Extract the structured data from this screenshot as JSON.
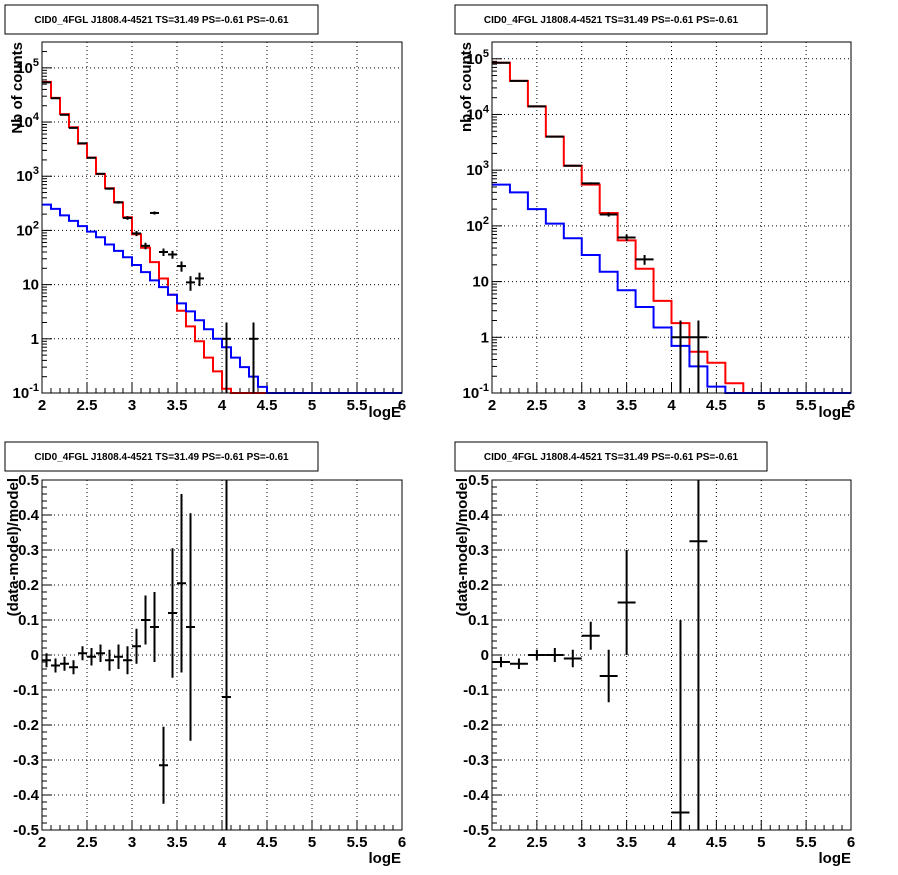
{
  "chart_data": [
    {
      "type": "line",
      "title": "CID0_4FGL J1808.4-4521 TS=31.49 PS=-0.61 PS=-0.61",
      "xlabel": "logE",
      "ylabel": "Nb of counts",
      "xlim": [
        2,
        6
      ],
      "ylim": [
        0.1,
        300000
      ],
      "yscale": "log",
      "grid": true,
      "x_tick_labels": [
        "2",
        "2.5",
        "3",
        "3.5",
        "4",
        "4.5",
        "5",
        "5.5",
        "6"
      ],
      "y_tick_labels": [
        "10^-1",
        "1",
        "10",
        "10^2",
        "10^3",
        "10^4",
        "10^5"
      ],
      "series": [
        {
          "color": "#ff0000",
          "style": "step",
          "bin_edges": [
            2.0,
            2.1,
            2.2,
            2.3,
            2.4,
            2.5,
            2.6,
            2.7,
            2.8,
            2.9,
            3.0,
            3.1,
            3.2,
            3.3,
            3.4,
            3.5,
            3.6,
            3.7,
            3.8,
            3.9,
            4.0,
            4.1,
            4.2,
            4.3,
            4.4,
            4.5,
            4.6,
            4.7,
            4.8,
            4.9,
            5.0,
            5.1,
            5.2,
            5.3,
            5.4,
            5.5,
            5.6,
            5.7,
            5.8,
            5.9,
            6.0
          ],
          "values": [
            55000,
            28000,
            14000,
            8000,
            4000,
            2200,
            1100,
            600,
            330,
            175,
            85,
            48,
            26,
            13,
            6.5,
            3.3,
            1.7,
            0.9,
            0.45,
            0.25,
            0.12,
            0.1,
            0.1,
            0.1,
            0.1,
            0.1,
            0.1,
            0.1,
            0.1,
            0.1,
            0.1,
            0.1,
            0.1,
            0.1,
            0.1,
            0.1,
            0.1,
            0.1,
            0.1,
            0.1
          ]
        },
        {
          "color": "#0000ff",
          "style": "step",
          "bin_edges": [
            2.0,
            2.1,
            2.2,
            2.3,
            2.4,
            2.5,
            2.6,
            2.7,
            2.8,
            2.9,
            3.0,
            3.1,
            3.2,
            3.3,
            3.4,
            3.5,
            3.6,
            3.7,
            3.8,
            3.9,
            4.0,
            4.1,
            4.2,
            4.3,
            4.4,
            4.5,
            4.6,
            4.7,
            4.8,
            4.9,
            5.0,
            5.1,
            5.2,
            5.3,
            5.4,
            5.5,
            5.6,
            5.7,
            5.8,
            5.9,
            6.0
          ],
          "values": [
            300,
            250,
            190,
            150,
            120,
            95,
            75,
            55,
            42,
            32,
            23,
            17,
            12,
            9,
            6.5,
            4.5,
            3.2,
            2.2,
            1.5,
            1.0,
            0.7,
            0.45,
            0.3,
            0.2,
            0.13,
            0.1,
            0.1,
            0.1,
            0.1,
            0.1,
            0.1,
            0.1,
            0.1,
            0.1,
            0.1,
            0.1,
            0.1,
            0.1,
            0.1,
            0.1
          ]
        },
        {
          "color": "#000000",
          "style": "errorbar",
          "points": [
            {
              "x": 2.05,
              "y": 54000,
              "xerr": 0.05,
              "yerr": [
                240,
                240
              ]
            },
            {
              "x": 2.15,
              "y": 27500,
              "xerr": 0.05,
              "yerr": [
                170,
                170
              ]
            },
            {
              "x": 2.25,
              "y": 13600,
              "xerr": 0.05,
              "yerr": [
                120,
                120
              ]
            },
            {
              "x": 2.35,
              "y": 7800,
              "xerr": 0.05,
              "yerr": [
                90,
                90
              ]
            },
            {
              "x": 2.45,
              "y": 4050,
              "xerr": 0.05,
              "yerr": [
                64,
                64
              ]
            },
            {
              "x": 2.55,
              "y": 2190,
              "xerr": 0.05,
              "yerr": [
                47,
                47
              ]
            },
            {
              "x": 2.65,
              "y": 1110,
              "xerr": 0.05,
              "yerr": [
                33,
                33
              ]
            },
            {
              "x": 2.75,
              "y": 590,
              "xerr": 0.05,
              "yerr": [
                24,
                24
              ]
            },
            {
              "x": 2.85,
              "y": 330,
              "xerr": 0.05,
              "yerr": [
                18,
                18
              ]
            },
            {
              "x": 2.95,
              "y": 170,
              "xerr": 0.05,
              "yerr": [
                13,
                13
              ]
            },
            {
              "x": 3.05,
              "y": 88,
              "xerr": 0.05,
              "yerr": [
                9.4,
                9.4
              ]
            },
            {
              "x": 3.15,
              "y": 52,
              "xerr": 0.05,
              "yerr": [
                7.2,
                7.2
              ]
            },
            {
              "x": 3.25,
              "y": 210,
              "xerr": 0.05,
              "yerr": [
                14,
                14
              ]
            },
            {
              "x": 3.35,
              "y": 40,
              "xerr": 0.05,
              "yerr": [
                6.3,
                6.3
              ]
            },
            {
              "x": 3.45,
              "y": 36,
              "xerr": 0.05,
              "yerr": [
                6,
                6
              ]
            },
            {
              "x": 3.55,
              "y": 22,
              "xerr": 0.05,
              "yerr": [
                4.7,
                4.7
              ]
            },
            {
              "x": 3.65,
              "y": 11,
              "xerr": 0.05,
              "yerr": [
                3.3,
                3.3
              ]
            },
            {
              "x": 3.75,
              "y": 13,
              "xerr": 0.05,
              "yerr": [
                3.6,
                3.6
              ]
            },
            {
              "x": 4.05,
              "y": 1,
              "xerr": 0.05,
              "yerr": [
                0.9,
                1
              ]
            },
            {
              "x": 4.35,
              "y": 1,
              "xerr": 0.05,
              "yerr": [
                0.9,
                1
              ]
            }
          ]
        }
      ]
    },
    {
      "type": "line",
      "title": "CID0_4FGL J1808.4-4521 TS=31.49 PS=-0.61 PS=-0.61",
      "xlabel": "logE",
      "ylabel": "nb of counts",
      "xlim": [
        2,
        6
      ],
      "ylim": [
        0.1,
        200000
      ],
      "yscale": "log",
      "grid": true,
      "x_tick_labels": [
        "2",
        "2.5",
        "3",
        "3.5",
        "4",
        "4.5",
        "5",
        "5.5",
        "6"
      ],
      "y_tick_labels": [
        "10^-1",
        "1",
        "10",
        "10^2",
        "10^3",
        "10^4",
        "10^5"
      ],
      "series": [
        {
          "color": "#ff0000",
          "style": "step",
          "bin_edges": [
            2.0,
            2.2,
            2.4,
            2.6,
            2.8,
            3.0,
            3.2,
            3.4,
            3.6,
            3.8,
            4.0,
            4.2,
            4.4,
            4.6,
            4.8,
            5.0,
            5.2,
            5.4,
            5.6,
            5.8,
            6.0
          ],
          "values": [
            85000,
            40000,
            14000,
            4000,
            1200,
            550,
            170,
            55,
            17,
            4.5,
            1.8,
            0.55,
            0.35,
            0.15,
            0.1,
            0.1,
            0.1,
            0.1,
            0.1,
            0.1
          ]
        },
        {
          "color": "#0000ff",
          "style": "step",
          "bin_edges": [
            2.0,
            2.2,
            2.4,
            2.6,
            2.8,
            3.0,
            3.2,
            3.4,
            3.6,
            3.8,
            4.0,
            4.2,
            4.4,
            4.6,
            4.8,
            5.0,
            5.2,
            5.4,
            5.6,
            5.8,
            6.0
          ],
          "values": [
            550,
            400,
            200,
            110,
            60,
            30,
            15,
            7,
            3.5,
            1.5,
            0.7,
            0.3,
            0.13,
            0.1,
            0.1,
            0.1,
            0.1,
            0.1,
            0.1,
            0.1
          ]
        },
        {
          "color": "#000000",
          "style": "errorbar",
          "points": [
            {
              "x": 2.1,
              "y": 85000,
              "xerr": 0.1,
              "yerr": [
                290,
                290
              ]
            },
            {
              "x": 2.3,
              "y": 40000,
              "xerr": 0.1,
              "yerr": [
                200,
                200
              ]
            },
            {
              "x": 2.5,
              "y": 14000,
              "xerr": 0.1,
              "yerr": [
                118,
                118
              ]
            },
            {
              "x": 2.7,
              "y": 4000,
              "xerr": 0.1,
              "yerr": [
                63,
                63
              ]
            },
            {
              "x": 2.9,
              "y": 1200,
              "xerr": 0.1,
              "yerr": [
                35,
                35
              ]
            },
            {
              "x": 3.1,
              "y": 580,
              "xerr": 0.1,
              "yerr": [
                24,
                24
              ]
            },
            {
              "x": 3.3,
              "y": 160,
              "xerr": 0.1,
              "yerr": [
                13,
                13
              ]
            },
            {
              "x": 3.5,
              "y": 62,
              "xerr": 0.1,
              "yerr": [
                8,
                8
              ]
            },
            {
              "x": 3.7,
              "y": 25,
              "xerr": 0.1,
              "yerr": [
                5,
                5
              ]
            },
            {
              "x": 4.1,
              "y": 1,
              "xerr": 0.1,
              "yerr": [
                0.9,
                1
              ]
            },
            {
              "x": 4.3,
              "y": 1,
              "xerr": 0.1,
              "yerr": [
                0.9,
                1
              ]
            }
          ]
        }
      ]
    },
    {
      "type": "scatter",
      "title": "CID0_4FGL J1808.4-4521 TS=31.49 PS=-0.61 PS=-0.61",
      "xlabel": "logE",
      "ylabel": "(data-model)/model",
      "xlim": [
        2,
        6
      ],
      "ylim": [
        -0.5,
        0.5
      ],
      "grid": true,
      "x_tick_labels": [
        "2",
        "2.5",
        "3",
        "3.5",
        "4",
        "4.5",
        "5",
        "5.5",
        "6"
      ],
      "y_tick_labels": [
        "-0.5",
        "-0.4",
        "-0.3",
        "-0.2",
        "-0.1",
        "0",
        "0.1",
        "0.2",
        "0.3",
        "0.4",
        "0.5"
      ],
      "series": [
        {
          "color": "#000000",
          "style": "errorbar",
          "points": [
            {
              "x": 2.05,
              "y": -0.015,
              "xerr": 0.05,
              "yerr": 0.02
            },
            {
              "x": 2.15,
              "y": -0.03,
              "xerr": 0.05,
              "yerr": 0.02
            },
            {
              "x": 2.25,
              "y": -0.025,
              "xerr": 0.05,
              "yerr": 0.02
            },
            {
              "x": 2.35,
              "y": -0.035,
              "xerr": 0.05,
              "yerr": 0.02
            },
            {
              "x": 2.45,
              "y": 0.005,
              "xerr": 0.05,
              "yerr": 0.02
            },
            {
              "x": 2.55,
              "y": -0.005,
              "xerr": 0.05,
              "yerr": 0.025
            },
            {
              "x": 2.65,
              "y": 0.005,
              "xerr": 0.05,
              "yerr": 0.025
            },
            {
              "x": 2.75,
              "y": -0.015,
              "xerr": 0.05,
              "yerr": 0.03
            },
            {
              "x": 2.85,
              "y": -0.005,
              "xerr": 0.05,
              "yerr": 0.035
            },
            {
              "x": 2.95,
              "y": -0.015,
              "xerr": 0.05,
              "yerr": 0.04
            },
            {
              "x": 3.05,
              "y": 0.025,
              "xerr": 0.05,
              "yerr": 0.05
            },
            {
              "x": 3.15,
              "y": 0.1,
              "xerr": 0.05,
              "yerr": 0.07
            },
            {
              "x": 3.25,
              "y": 0.08,
              "xerr": 0.05,
              "yerr": 0.1
            },
            {
              "x": 3.35,
              "y": -0.315,
              "xerr": 0.05,
              "yerr": 0.11
            },
            {
              "x": 3.45,
              "y": 0.12,
              "xerr": 0.05,
              "yerr": 0.185
            },
            {
              "x": 3.55,
              "y": 0.205,
              "xerr": 0.05,
              "yerr": 0.255
            },
            {
              "x": 3.65,
              "y": 0.08,
              "xerr": 0.05,
              "yerr": 0.325
            },
            {
              "x": 4.05,
              "y": -0.12,
              "xerr": 0.05,
              "yerr": 0.9
            }
          ]
        }
      ]
    },
    {
      "type": "scatter",
      "title": "CID0_4FGL J1808.4-4521 TS=31.49 PS=-0.61 PS=-0.61",
      "xlabel": "logE",
      "ylabel": "(data-model)/model",
      "xlim": [
        2,
        6
      ],
      "ylim": [
        -0.5,
        0.5
      ],
      "grid": true,
      "x_tick_labels": [
        "2",
        "2.5",
        "3",
        "3.5",
        "4",
        "4.5",
        "5",
        "5.5",
        "6"
      ],
      "y_tick_labels": [
        "-0.5",
        "-0.4",
        "-0.3",
        "-0.2",
        "-0.1",
        "0",
        "0.1",
        "0.2",
        "0.3",
        "0.4",
        "0.5"
      ],
      "series": [
        {
          "color": "#000000",
          "style": "errorbar",
          "points": [
            {
              "x": 2.1,
              "y": -0.02,
              "xerr": 0.1,
              "yerr": 0.015
            },
            {
              "x": 2.3,
              "y": -0.025,
              "xerr": 0.1,
              "yerr": 0.015
            },
            {
              "x": 2.5,
              "y": 0.0,
              "xerr": 0.1,
              "yerr": 0.015
            },
            {
              "x": 2.7,
              "y": 0.0,
              "xerr": 0.1,
              "yerr": 0.02
            },
            {
              "x": 2.9,
              "y": -0.01,
              "xerr": 0.1,
              "yerr": 0.025
            },
            {
              "x": 3.1,
              "y": 0.055,
              "xerr": 0.1,
              "yerr": 0.04
            },
            {
              "x": 3.3,
              "y": -0.06,
              "xerr": 0.1,
              "yerr": 0.075
            },
            {
              "x": 3.5,
              "y": 0.15,
              "xerr": 0.1,
              "yerr": 0.15
            },
            {
              "x": 4.1,
              "y": -0.45,
              "xerr": 0.1,
              "yerr": 0.55
            },
            {
              "x": 4.3,
              "y": 0.325,
              "xerr": 0.1,
              "yerr": 0.9
            }
          ]
        }
      ]
    }
  ]
}
